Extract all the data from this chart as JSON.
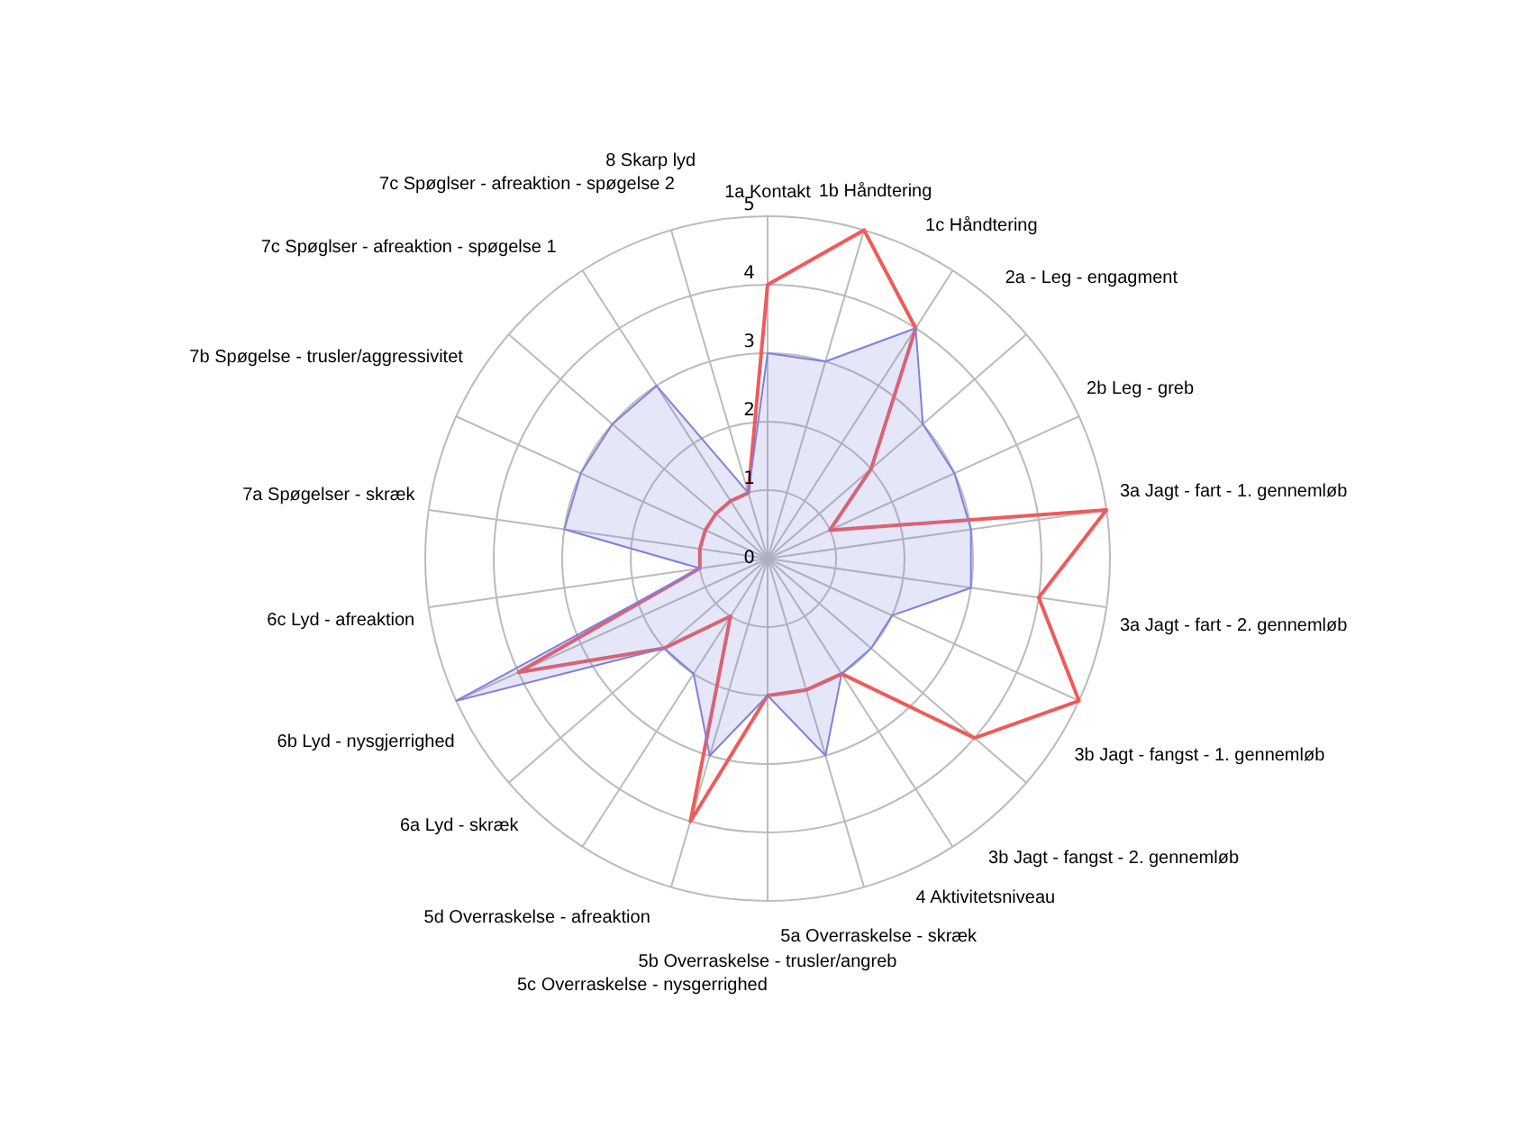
{
  "chart_data": {
    "type": "radar",
    "categories": [
      "1a Kontakt",
      "1b Håndtering",
      "1c Håndtering",
      "2a - Leg - engagment",
      "2b Leg - greb",
      "3a Jagt - fart - 1. gennemløb",
      "3a Jagt - fart - 2. gennemløb",
      "3b Jagt - fangst - 1. gennemløb",
      "3b Jagt - fangst - 2. gennemløb",
      "4 Aktivitetsniveau",
      "5a Overraskelse - skræk",
      "5b Overraskelse - trusler/angreb",
      "5c Overraskelse - nysgerrighed",
      "5d Overraskelse - afreaktion",
      "6a Lyd - skræk",
      "6b Lyd - nysgjerrighed",
      "6c Lyd - afreaktion",
      "7a Spøgelser - skræk",
      "7b Spøgelse - trusler/aggressivitet",
      "7c Spøglser - afreaktion - spøgelse 1",
      "7c Spøglser - afreaktion - spøgelse 2",
      "8 Skarp lyd"
    ],
    "series": [
      {
        "type": "area",
        "color": "#8080e0",
        "values": [
          3,
          3,
          4,
          3,
          3,
          3,
          3,
          2,
          2,
          2,
          3,
          2,
          3,
          2,
          2,
          5,
          1,
          3,
          3,
          3,
          3,
          1
        ]
      },
      {
        "color": "#f05a5a",
        "values": [
          4,
          5,
          4,
          2,
          1,
          5,
          4,
          5,
          4,
          2,
          2,
          2,
          4,
          1,
          2,
          4,
          1,
          1,
          1,
          1,
          1,
          1
        ]
      }
    ],
    "ylim": [
      0,
      5
    ],
    "yticks": [
      0,
      1,
      2,
      3,
      4,
      5
    ],
    "grid": true,
    "legend": false,
    "marker": "none"
  }
}
